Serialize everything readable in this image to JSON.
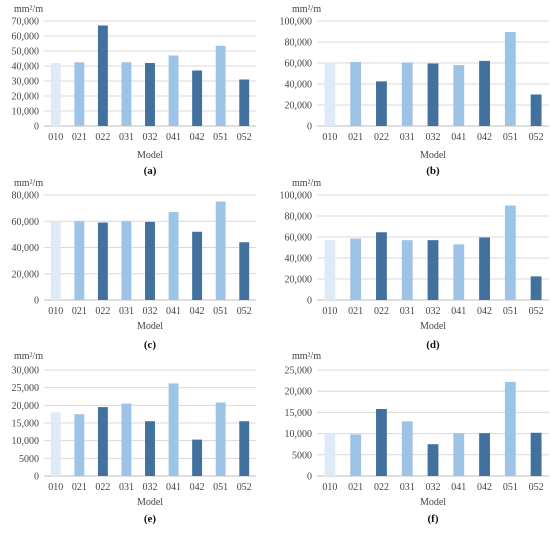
{
  "colors": {
    "very_light": "#deeaf6",
    "light": "#9dc3e6",
    "dark": "#41719c",
    "grid": "#d9d9d9",
    "axis": "#bfbfbf"
  },
  "chart_data": [
    {
      "type": "bar",
      "panel_label": "(a)",
      "unit": "mm²/m",
      "xlabel": "Model",
      "categories": [
        "010",
        "021",
        "022",
        "031",
        "032",
        "041",
        "042",
        "051",
        "052"
      ],
      "values": [
        42000,
        42500,
        67000,
        42500,
        42000,
        47000,
        37000,
        53500,
        31000
      ],
      "bar_shades": [
        "very_light",
        "light",
        "dark",
        "light",
        "dark",
        "light",
        "dark",
        "light",
        "dark"
      ],
      "ylim": [
        0,
        70000
      ],
      "yticks": [
        0,
        10000,
        20000,
        30000,
        40000,
        50000,
        60000,
        70000
      ],
      "ytick_labels": [
        "0",
        "10,000",
        "20,000",
        "30,000",
        "40,000",
        "50,000",
        "60,000",
        "70,000"
      ],
      "grid": true
    },
    {
      "type": "bar",
      "panel_label": "(b)",
      "unit": "mm²/m",
      "xlabel": "Model",
      "categories": [
        "010",
        "021",
        "022",
        "031",
        "032",
        "041",
        "042",
        "051",
        "052"
      ],
      "values": [
        60000,
        61000,
        42500,
        60500,
        59500,
        58000,
        62000,
        89500,
        30000
      ],
      "bar_shades": [
        "very_light",
        "light",
        "dark",
        "light",
        "dark",
        "light",
        "dark",
        "light",
        "dark"
      ],
      "ylim": [
        0,
        100000
      ],
      "yticks": [
        0,
        20000,
        40000,
        60000,
        80000,
        100000
      ],
      "ytick_labels": [
        "0",
        "20,000",
        "40,000",
        "60,000",
        "80,000",
        "100,000"
      ],
      "grid": true
    },
    {
      "type": "bar",
      "panel_label": "(c)",
      "unit": "mm²/m",
      "xlabel": "Model",
      "categories": [
        "010",
        "021",
        "022",
        "031",
        "032",
        "041",
        "042",
        "051",
        "052"
      ],
      "values": [
        60000,
        60000,
        59000,
        60000,
        59500,
        67000,
        52000,
        75000,
        44000
      ],
      "bar_shades": [
        "very_light",
        "light",
        "dark",
        "light",
        "dark",
        "light",
        "dark",
        "light",
        "dark"
      ],
      "ylim": [
        0,
        80000
      ],
      "yticks": [
        0,
        20000,
        40000,
        60000,
        80000
      ],
      "ytick_labels": [
        "0",
        "20,000",
        "40,000",
        "60,000",
        "80,000"
      ],
      "grid": true
    },
    {
      "type": "bar",
      "panel_label": "(d)",
      "unit": "mm²/m",
      "xlabel": "Model",
      "categories": [
        "010",
        "021",
        "022",
        "031",
        "032",
        "041",
        "042",
        "051",
        "052"
      ],
      "values": [
        57000,
        58500,
        64500,
        57000,
        57000,
        53000,
        59500,
        90000,
        22500
      ],
      "bar_shades": [
        "very_light",
        "light",
        "dark",
        "light",
        "dark",
        "light",
        "dark",
        "light",
        "dark"
      ],
      "ylim": [
        0,
        100000
      ],
      "yticks": [
        0,
        20000,
        40000,
        60000,
        80000,
        100000
      ],
      "ytick_labels": [
        "0",
        "20,000",
        "40,000",
        "60,000",
        "80,000",
        "100,000"
      ],
      "grid": true
    },
    {
      "type": "bar",
      "panel_label": "(e)",
      "unit": "mm²/m",
      "xlabel": "Model",
      "categories": [
        "010",
        "021",
        "022",
        "031",
        "032",
        "041",
        "042",
        "051",
        "052"
      ],
      "values": [
        18000,
        17500,
        19500,
        20500,
        15500,
        26200,
        10300,
        20800,
        15500
      ],
      "bar_shades": [
        "very_light",
        "light",
        "dark",
        "light",
        "dark",
        "light",
        "dark",
        "light",
        "dark"
      ],
      "ylim": [
        0,
        30000
      ],
      "yticks": [
        0,
        5000,
        10000,
        15000,
        20000,
        25000,
        30000
      ],
      "ytick_labels": [
        "0",
        "5000",
        "10,000",
        "15,000",
        "20,000",
        "25,000",
        "30,000"
      ],
      "grid": true
    },
    {
      "type": "bar",
      "panel_label": "(f)",
      "unit": "mm²/m",
      "xlabel": "Model",
      "categories": [
        "010",
        "021",
        "022",
        "031",
        "032",
        "041",
        "042",
        "051",
        "052"
      ],
      "values": [
        10000,
        9800,
        15800,
        12900,
        7500,
        10100,
        10100,
        22200,
        10200
      ],
      "bar_shades": [
        "very_light",
        "light",
        "dark",
        "light",
        "dark",
        "light",
        "dark",
        "light",
        "dark"
      ],
      "ylim": [
        0,
        25000
      ],
      "yticks": [
        0,
        5000,
        10000,
        15000,
        20000,
        25000
      ],
      "ytick_labels": [
        "0",
        "5000",
        "10,000",
        "15,000",
        "20,000",
        "25,000"
      ],
      "grid": true
    }
  ]
}
